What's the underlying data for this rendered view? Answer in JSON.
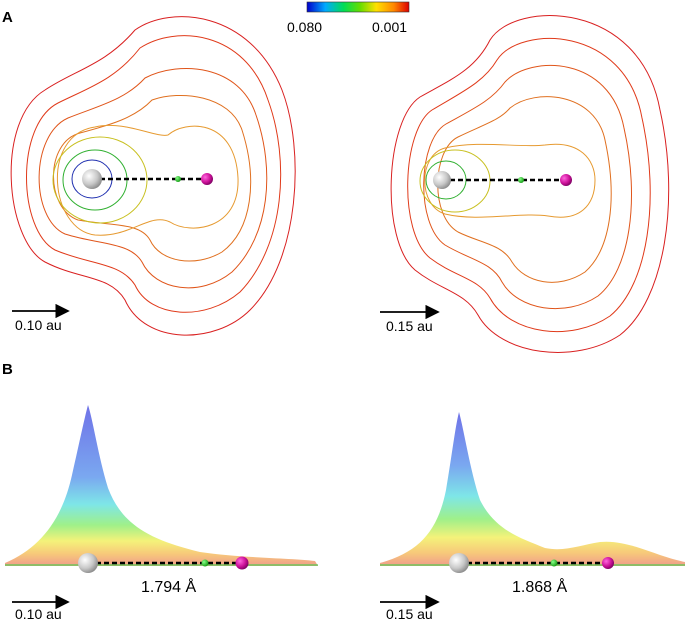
{
  "panel_a": {
    "letter": "A",
    "colorbar": {
      "max_label": "0.080",
      "min_label": "0.001",
      "stops": [
        "#0000cc",
        "#00aaff",
        "#00dd55",
        "#66dd00",
        "#ffe000",
        "#ff8800",
        "#dd0000"
      ]
    },
    "left": {
      "arrow_label": "0.10 au"
    },
    "right": {
      "arrow_label": "0.15 au"
    },
    "contour_colors_outer_to_inner": [
      "#d92020",
      "#e03a1a",
      "#e0551a",
      "#e07020",
      "#e69a30",
      "#c8c020",
      "#30b030",
      "#2030b0"
    ]
  },
  "panel_b": {
    "letter": "B",
    "left": {
      "distance_label": "1.794 Å",
      "arrow_label": "0.10 au"
    },
    "right": {
      "distance_label": "1.868 Å",
      "arrow_label": "0.15 au"
    },
    "surface_colors_top_to_bottom": [
      "#6f72e8",
      "#7aa8f0",
      "#7ee6e8",
      "#9ff08a",
      "#f4f27a",
      "#f7c97a",
      "#f0a08a"
    ]
  },
  "atoms": {
    "heavy_color": "#c8c8c8",
    "light_color": "#cc1199",
    "critical_point_color": "#22cc22"
  }
}
